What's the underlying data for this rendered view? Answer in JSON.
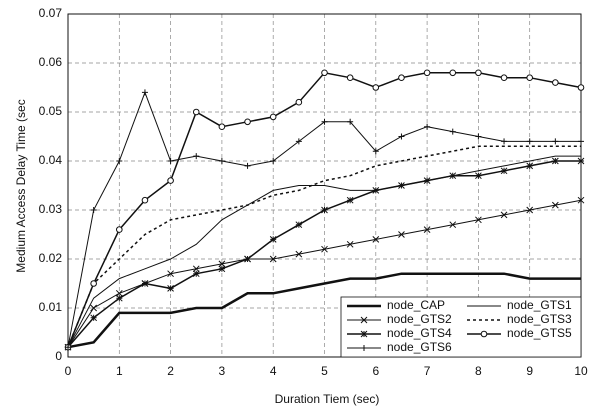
{
  "chart_data": {
    "type": "line",
    "xlabel": "Duration Tiem (sec)",
    "ylabel": "Medium Access Delay Time (sec",
    "x": [
      0,
      0.5,
      1,
      1.5,
      2,
      2.5,
      3,
      3.5,
      4,
      4.5,
      5,
      5.5,
      6,
      6.5,
      7,
      7.5,
      8,
      8.5,
      9,
      9.5,
      10
    ],
    "series": [
      {
        "name": "node_CAP",
        "color": "#111111",
        "dash": "solid",
        "line_width": 2.5,
        "marker": "none",
        "values": [
          0.002,
          0.003,
          0.009,
          0.009,
          0.009,
          0.01,
          0.01,
          0.013,
          0.013,
          0.014,
          0.015,
          0.016,
          0.016,
          0.017,
          0.017,
          0.017,
          0.017,
          0.017,
          0.016,
          0.016,
          0.016
        ]
      },
      {
        "name": "node_GTS1",
        "color": "#111111",
        "dash": "solid",
        "line_width": 1,
        "marker": "none",
        "values": [
          0.002,
          0.012,
          0.016,
          0.018,
          0.02,
          0.023,
          0.028,
          0.031,
          0.034,
          0.035,
          0.035,
          0.034,
          0.034,
          0.035,
          0.036,
          0.037,
          0.038,
          0.039,
          0.04,
          0.041,
          0.041
        ]
      },
      {
        "name": "node_GTS2",
        "color": "#111111",
        "dash": "solid",
        "line_width": 1,
        "marker": "x",
        "values": [
          0.002,
          0.01,
          0.013,
          0.015,
          0.017,
          0.018,
          0.019,
          0.02,
          0.02,
          0.021,
          0.022,
          0.023,
          0.024,
          0.025,
          0.026,
          0.027,
          0.028,
          0.029,
          0.03,
          0.031,
          0.032
        ]
      },
      {
        "name": "node_GTS3",
        "color": "#111111",
        "dash": "dotted",
        "line_width": 1.5,
        "marker": "none",
        "values": [
          0.002,
          0.015,
          0.02,
          0.025,
          0.028,
          0.029,
          0.03,
          0.031,
          0.033,
          0.034,
          0.036,
          0.037,
          0.039,
          0.04,
          0.041,
          0.042,
          0.043,
          0.043,
          0.043,
          0.043,
          0.043
        ]
      },
      {
        "name": "node_GTS4",
        "color": "#111111",
        "dash": "solid",
        "line_width": 1.5,
        "marker": "star",
        "values": [
          0.002,
          0.008,
          0.012,
          0.015,
          0.014,
          0.017,
          0.018,
          0.02,
          0.024,
          0.027,
          0.03,
          0.032,
          0.034,
          0.035,
          0.036,
          0.037,
          0.037,
          0.038,
          0.039,
          0.04,
          0.04
        ]
      },
      {
        "name": "node_GTS5",
        "color": "#111111",
        "dash": "solid",
        "line_width": 1.5,
        "marker": "circle",
        "values": [
          0.002,
          0.015,
          0.026,
          0.032,
          0.036,
          0.05,
          0.047,
          0.048,
          0.049,
          0.052,
          0.058,
          0.057,
          0.055,
          0.057,
          0.058,
          0.058,
          0.058,
          0.057,
          0.057,
          0.056,
          0.055
        ]
      },
      {
        "name": "node_GTS6",
        "color": "#111111",
        "dash": "solid",
        "line_width": 1,
        "marker": "plus",
        "values": [
          0.002,
          0.03,
          0.04,
          0.054,
          0.04,
          0.041,
          0.04,
          0.039,
          0.04,
          0.044,
          0.048,
          0.048,
          0.042,
          0.045,
          0.047,
          0.046,
          0.045,
          0.044,
          0.044,
          0.044,
          0.044
        ]
      }
    ],
    "xlim": [
      0,
      10
    ],
    "xticks": [
      0,
      1,
      2,
      3,
      4,
      5,
      6,
      7,
      8,
      9,
      10
    ],
    "ylim": [
      0,
      0.07
    ],
    "yticks": [
      0,
      0.01,
      0.02,
      0.03,
      0.04,
      0.05,
      0.06,
      0.07
    ],
    "grid": true,
    "legend": "lower right"
  }
}
